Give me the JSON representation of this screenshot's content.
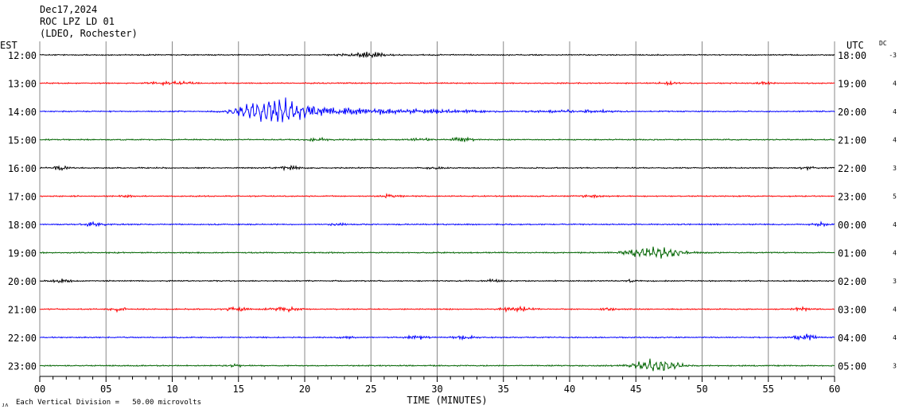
{
  "header": {
    "date": "Dec17,2024",
    "station": "ROC LPZ LD 01",
    "network": "(LDEO, Rochester)"
  },
  "left_axis_label": "EST",
  "right_axis_label": "UTC",
  "dc_label": "DC",
  "footer": {
    "scale_icon": "scale-glyph-icon",
    "scale_note": "Each Vertical Division =   50.00 microvolts"
  },
  "colors": {
    "black": "#000000",
    "red": "#ff0000",
    "blue": "#0000ff",
    "green": "#006400",
    "grid": "#888888"
  },
  "chart_data": {
    "type": "line",
    "title": "",
    "xlabel": "TIME (MINUTES)",
    "ylabel": "",
    "xlim": [
      0,
      60
    ],
    "x_ticks": [
      "00",
      "05",
      "10",
      "15",
      "20",
      "25",
      "30",
      "35",
      "40",
      "45",
      "50",
      "55",
      "60"
    ],
    "grid": true,
    "rows": [
      {
        "est": "12:00",
        "utc": "18:00",
        "dc": "-3",
        "color": "#000000",
        "bursts": [
          [
            24.7,
            1.5,
            0.8
          ]
        ]
      },
      {
        "est": "13:00",
        "utc": "19:00",
        "dc": "4",
        "color": "#ff0000",
        "bursts": [
          [
            10.0,
            1.4,
            0.6
          ],
          [
            47.5,
            0.7,
            0.5
          ],
          [
            54.8,
            0.6,
            0.4
          ]
        ]
      },
      {
        "est": "14:00",
        "utc": "20:00",
        "dc": "4",
        "color": "#0000ff",
        "bursts": [
          [
            18.0,
            2.8,
            2.4
          ],
          [
            23.5,
            3.5,
            1.0
          ],
          [
            30.0,
            4.0,
            0.5
          ],
          [
            40.5,
            3.0,
            0.4
          ]
        ]
      },
      {
        "est": "15:00",
        "utc": "21:00",
        "dc": "4",
        "color": "#006400",
        "bursts": [
          [
            21.0,
            0.8,
            0.5
          ],
          [
            28.8,
            0.6,
            0.5
          ],
          [
            31.8,
            0.7,
            0.8
          ]
        ]
      },
      {
        "est": "16:00",
        "utc": "22:00",
        "dc": "3",
        "color": "#000000",
        "bursts": [
          [
            1.5,
            0.8,
            0.5
          ],
          [
            18.8,
            0.7,
            0.7
          ],
          [
            29.7,
            0.5,
            0.4
          ],
          [
            58.0,
            0.6,
            0.4
          ]
        ]
      },
      {
        "est": "17:00",
        "utc": "23:00",
        "dc": "5",
        "color": "#ff0000",
        "bursts": [
          [
            6.5,
            0.5,
            0.5
          ],
          [
            26.5,
            0.7,
            0.6
          ],
          [
            41.5,
            0.6,
            0.5
          ]
        ]
      },
      {
        "est": "18:00",
        "utc": "00:00",
        "dc": "4",
        "color": "#0000ff",
        "bursts": [
          [
            4.0,
            0.8,
            0.6
          ],
          [
            22.5,
            0.6,
            0.4
          ],
          [
            59.0,
            0.6,
            0.5
          ]
        ]
      },
      {
        "est": "19:00",
        "utc": "01:00",
        "dc": "4",
        "color": "#006400",
        "bursts": [
          [
            46.5,
            2.0,
            1.2
          ],
          [
            44.3,
            0.5,
            0.6
          ]
        ]
      },
      {
        "est": "20:00",
        "utc": "02:00",
        "dc": "3",
        "color": "#000000",
        "bursts": [
          [
            1.5,
            0.8,
            0.5
          ],
          [
            34.2,
            0.6,
            0.4
          ],
          [
            44.8,
            0.5,
            0.5
          ]
        ]
      },
      {
        "est": "21:00",
        "utc": "03:00",
        "dc": "4",
        "color": "#ff0000",
        "bursts": [
          [
            6.0,
            0.6,
            0.7
          ],
          [
            14.8,
            0.8,
            0.7
          ],
          [
            18.3,
            1.0,
            0.8
          ],
          [
            36.0,
            1.1,
            0.8
          ],
          [
            43.0,
            0.5,
            0.6
          ],
          [
            57.5,
            0.8,
            0.5
          ]
        ]
      },
      {
        "est": "22:00",
        "utc": "04:00",
        "dc": "4",
        "color": "#0000ff",
        "bursts": [
          [
            23.0,
            0.5,
            0.5
          ],
          [
            28.5,
            0.8,
            0.6
          ],
          [
            32.0,
            0.7,
            0.7
          ],
          [
            57.8,
            0.9,
            0.9
          ]
        ]
      },
      {
        "est": "23:00",
        "utc": "05:00",
        "dc": "3",
        "color": "#006400",
        "bursts": [
          [
            14.7,
            0.5,
            0.5
          ],
          [
            46.5,
            1.8,
            1.1
          ]
        ]
      }
    ]
  }
}
